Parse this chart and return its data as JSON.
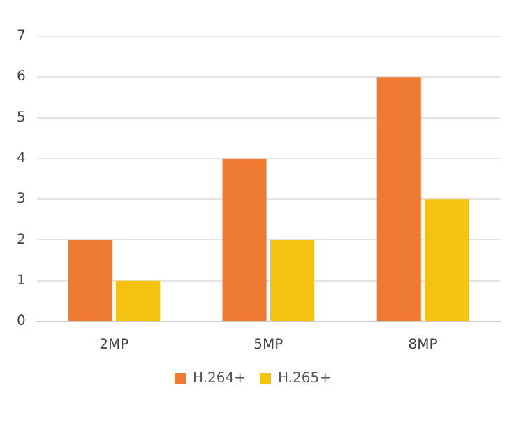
{
  "chart_data": {
    "type": "bar",
    "categories": [
      "2MP",
      "5MP",
      "8MP"
    ],
    "series": [
      {
        "name": "H.264+",
        "color": "#ee7a33",
        "values": [
          2,
          4,
          6
        ]
      },
      {
        "name": "H.265+",
        "color": "#f5c20f",
        "values": [
          1,
          2,
          3
        ]
      }
    ],
    "ylim": [
      0,
      7
    ],
    "yticks": [
      0,
      1,
      2,
      3,
      4,
      5,
      6,
      7
    ],
    "grid": "y",
    "legend": "bottom"
  }
}
